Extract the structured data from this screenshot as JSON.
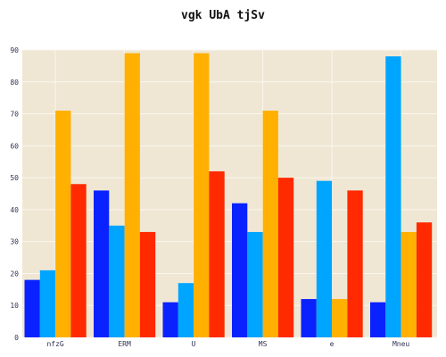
{
  "chart_data": {
    "type": "bar",
    "title": "vgk UbA tjSv",
    "xlabel": "",
    "ylabel": "",
    "categories": [
      "nfzG",
      "ERM",
      "U",
      "MS",
      "e",
      "Mneu"
    ],
    "series": [
      {
        "values": [
          18,
          46,
          11,
          42,
          12,
          11
        ],
        "color": "#0a22ff"
      },
      {
        "values": [
          21,
          35,
          17,
          33,
          49,
          88
        ],
        "color": "#00a5ff"
      },
      {
        "values": [
          71,
          89,
          89,
          71,
          12,
          33
        ],
        "color": "#ffb000"
      },
      {
        "values": [
          48,
          33,
          52,
          50,
          46,
          36
        ],
        "color": "#ff2a00"
      }
    ],
    "ylim": [
      0,
      90
    ],
    "yticks": [
      0,
      10,
      20,
      30,
      40,
      50,
      60,
      70,
      80,
      90
    ],
    "grid": true,
    "background_color": "#efe7d4",
    "grid_color": "#fbf7ee",
    "tick_label_color": "#333355"
  }
}
